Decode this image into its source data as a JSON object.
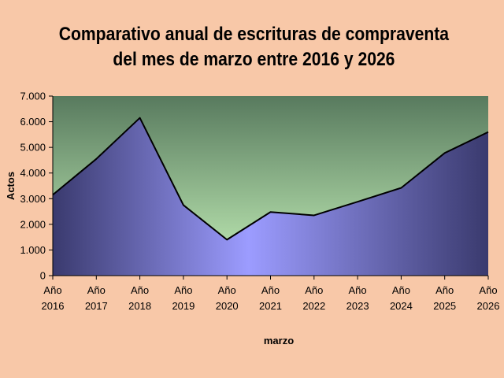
{
  "page": {
    "background_color": "#f8c8a8"
  },
  "chart_data": {
    "type": "area",
    "title_lines": [
      "Comparativo anual de escrituras de compraventa",
      "del mes de marzo entre 2016 y 2026"
    ],
    "xlabel": "marzo",
    "ylabel": "Actos",
    "categories": [
      [
        "Año",
        "2016"
      ],
      [
        "Año",
        "2017"
      ],
      [
        "Año",
        "2018"
      ],
      [
        "Año",
        "2019"
      ],
      [
        "Año",
        "2020"
      ],
      [
        "Año",
        "2021"
      ],
      [
        "Año",
        "2022"
      ],
      [
        "Año",
        "2023"
      ],
      [
        "Año",
        "2024"
      ],
      [
        "Año",
        "2025"
      ],
      [
        "Año",
        "2026"
      ]
    ],
    "series": [
      {
        "values": [
          3150,
          4550,
          6150,
          2750,
          1400,
          2480,
          2350,
          2880,
          3420,
          4780,
          5600
        ]
      }
    ],
    "ylim": [
      0,
      7000
    ],
    "yticks": [
      {
        "value": 0,
        "label": "0"
      },
      {
        "value": 1000,
        "label": "1.000"
      },
      {
        "value": 2000,
        "label": "2.000"
      },
      {
        "value": 3000,
        "label": "3.000"
      },
      {
        "value": 4000,
        "label": "4.000"
      },
      {
        "value": 5000,
        "label": "5.000"
      },
      {
        "value": 6000,
        "label": "6.000"
      },
      {
        "value": 7000,
        "label": "7.000"
      }
    ],
    "grid": false,
    "legend": "none",
    "colors": {
      "plot_bg_top": "#587a5e",
      "plot_bg_bottom": "#c4f0b8",
      "area_edge": "#3a3a6e",
      "area_center": "#9c9cff",
      "line": "#000000"
    }
  }
}
